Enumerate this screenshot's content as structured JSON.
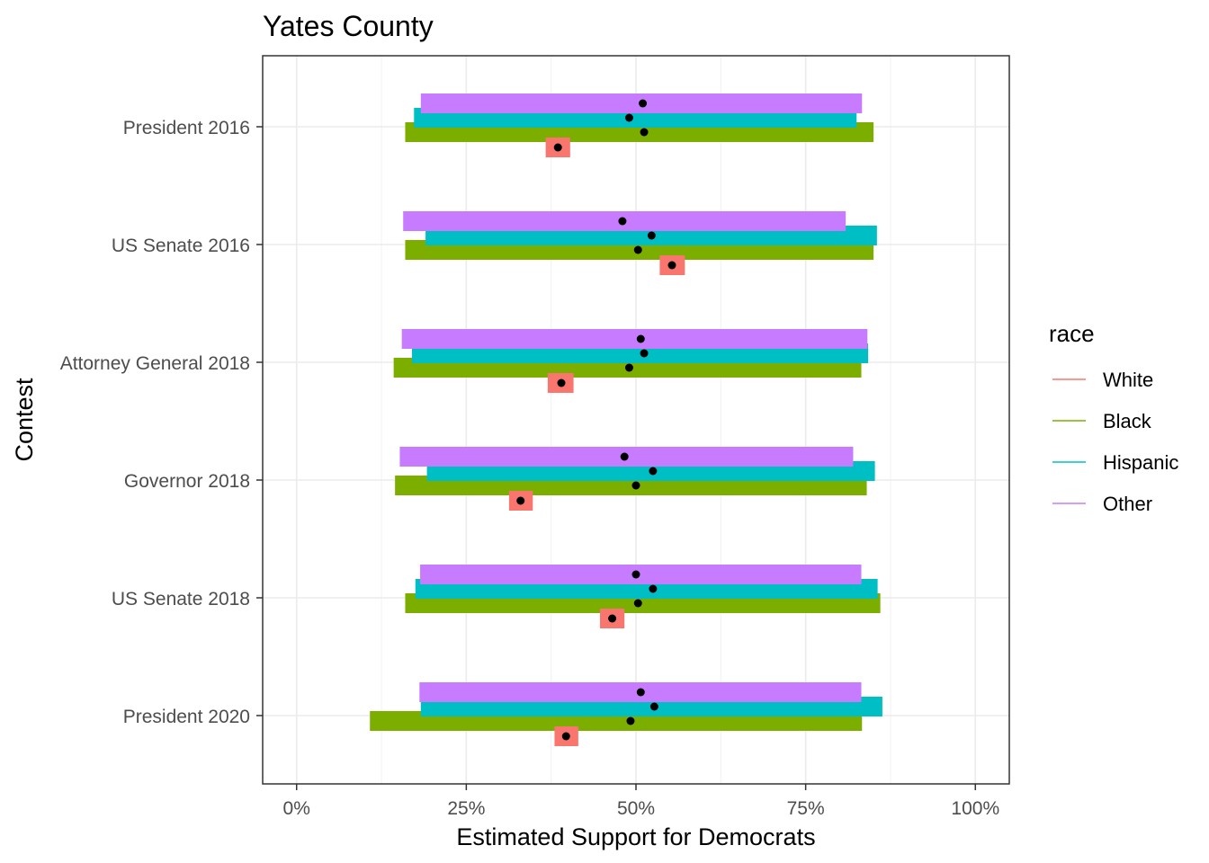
{
  "chart_data": {
    "type": "bar",
    "title": "Yates County",
    "xlabel": "Estimated Support for Democrats",
    "ylabel": "Contest",
    "xlim": [
      -0.05,
      1.05
    ],
    "x_ticks": [
      {
        "value": 0,
        "label": "0%"
      },
      {
        "value": 0.25,
        "label": "25%"
      },
      {
        "value": 0.5,
        "label": "50%"
      },
      {
        "value": 0.75,
        "label": "75%"
      },
      {
        "value": 1,
        "label": "100%"
      }
    ],
    "categories": [
      "President 2016",
      "US Senate 2016",
      "Attorney General 2018",
      "Governor 2018",
      "US Senate 2018",
      "President 2020"
    ],
    "grid": true,
    "legend": {
      "title": "race",
      "position": "right",
      "entries": [
        "White",
        "Black",
        "Hispanic",
        "Other"
      ]
    },
    "series": [
      {
        "name": "White",
        "color": "#F8766D",
        "estimate": [
          0.385,
          0.553,
          0.39,
          0.33,
          0.465,
          0.397
        ],
        "low": [
          0.367,
          0.535,
          0.37,
          0.313,
          0.447,
          0.38
        ],
        "high": [
          0.403,
          0.572,
          0.408,
          0.348,
          0.483,
          0.415
        ]
      },
      {
        "name": "Black",
        "color": "#7CAE00",
        "estimate": [
          0.512,
          0.503,
          0.49,
          0.5,
          0.503,
          0.492
        ],
        "low": [
          0.16,
          0.16,
          0.143,
          0.145,
          0.16,
          0.108
        ],
        "high": [
          0.85,
          0.85,
          0.832,
          0.84,
          0.86,
          0.833
        ]
      },
      {
        "name": "Hispanic",
        "color": "#00BFC4",
        "estimate": [
          0.49,
          0.523,
          0.512,
          0.525,
          0.525,
          0.527
        ],
        "low": [
          0.173,
          0.19,
          0.17,
          0.192,
          0.175,
          0.183
        ],
        "high": [
          0.825,
          0.855,
          0.842,
          0.852,
          0.856,
          0.863
        ]
      },
      {
        "name": "Other",
        "color": "#C77CFF",
        "estimate": [
          0.51,
          0.48,
          0.507,
          0.483,
          0.5,
          0.507
        ],
        "low": [
          0.183,
          0.157,
          0.155,
          0.152,
          0.182,
          0.181
        ],
        "high": [
          0.833,
          0.809,
          0.841,
          0.82,
          0.832,
          0.832
        ]
      }
    ]
  }
}
